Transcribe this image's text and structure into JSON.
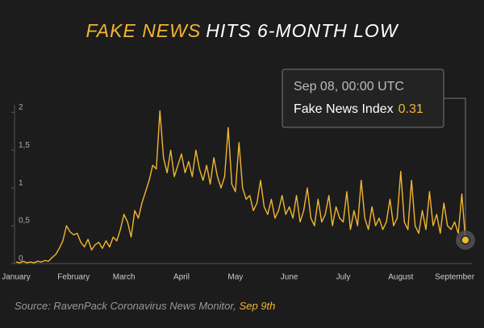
{
  "chart_data": {
    "type": "line",
    "title_highlight": "FAKE NEWS",
    "title": "HITS 6-MONTH LOW",
    "source": "Source: RavenPack Coronavirus News Monitor,",
    "source_date": "Sep 9th",
    "tooltip_date": "Sep  08, 00:00 UTC",
    "series_name": "Fake News Index",
    "color": "#f2b632",
    "categories": [
      "January",
      null,
      null,
      null,
      null,
      null,
      null,
      null,
      null,
      null,
      null,
      null,
      null,
      null,
      null,
      null,
      "February",
      null,
      null,
      null,
      null,
      null,
      null,
      null,
      null,
      null,
      null,
      null,
      null,
      null,
      "March",
      null,
      null,
      null,
      null,
      null,
      null,
      null,
      null,
      null,
      null,
      null,
      null,
      null,
      null,
      null,
      "April",
      null,
      null,
      null,
      null,
      null,
      null,
      null,
      null,
      null,
      null,
      null,
      null,
      null,
      null,
      "May",
      null,
      null,
      null,
      null,
      null,
      null,
      null,
      null,
      null,
      null,
      null,
      null,
      null,
      null,
      "June",
      null,
      null,
      null,
      null,
      null,
      null,
      null,
      null,
      null,
      null,
      null,
      null,
      null,
      null,
      "July",
      null,
      null,
      null,
      null,
      null,
      null,
      null,
      null,
      null,
      null,
      null,
      null,
      null,
      null,
      null,
      "August",
      null,
      null,
      null,
      null,
      null,
      null,
      null,
      null,
      null,
      null,
      null,
      null,
      null,
      null,
      "September",
      null,
      null,
      null
    ],
    "values": [
      0.02,
      0.01,
      0.03,
      0.01,
      0.02,
      0.01,
      0.03,
      0.02,
      0.04,
      0.03,
      0.08,
      0.12,
      0.2,
      0.3,
      0.5,
      0.42,
      0.38,
      0.4,
      0.28,
      0.22,
      0.32,
      0.18,
      0.25,
      0.28,
      0.2,
      0.3,
      0.22,
      0.35,
      0.3,
      0.45,
      0.65,
      0.55,
      0.35,
      0.7,
      0.6,
      0.8,
      0.95,
      1.1,
      1.3,
      1.25,
      2.02,
      1.4,
      1.2,
      1.5,
      1.15,
      1.3,
      1.45,
      1.2,
      1.35,
      1.15,
      1.5,
      1.25,
      1.1,
      1.3,
      1.05,
      1.4,
      1.15,
      1.0,
      1.15,
      1.8,
      1.05,
      0.95,
      1.6,
      1.0,
      0.85,
      0.9,
      0.7,
      0.8,
      1.1,
      0.75,
      0.65,
      0.85,
      0.6,
      0.7,
      0.9,
      0.65,
      0.75,
      0.6,
      0.9,
      0.55,
      0.7,
      1.0,
      0.6,
      0.5,
      0.85,
      0.55,
      0.65,
      0.9,
      0.5,
      0.75,
      0.6,
      0.55,
      0.95,
      0.45,
      0.7,
      0.5,
      1.1,
      0.6,
      0.45,
      0.75,
      0.5,
      0.6,
      0.45,
      0.55,
      0.85,
      0.5,
      0.6,
      1.22,
      0.55,
      0.45,
      1.1,
      0.5,
      0.4,
      0.7,
      0.45,
      0.95,
      0.5,
      0.65,
      0.4,
      0.8,
      0.5,
      0.45,
      0.55,
      0.4,
      0.92,
      0.31
    ],
    "ylim": [
      0,
      2.1
    ],
    "yticks": [
      0,
      {
        "value": 0.5,
        "label": "0,5"
      },
      1,
      {
        "value": 1.5,
        "label": "1,5"
      },
      2
    ]
  }
}
